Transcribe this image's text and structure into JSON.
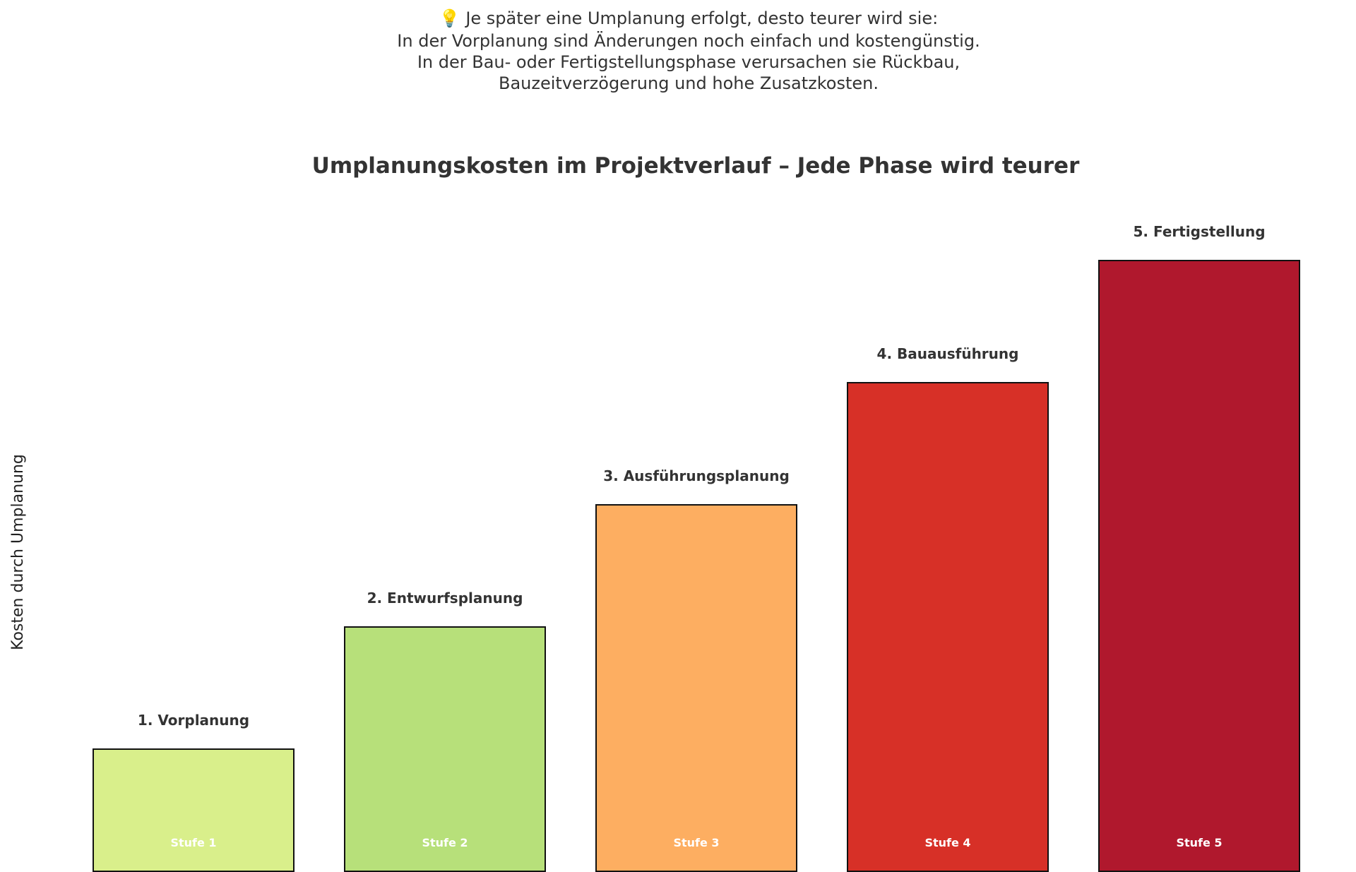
{
  "note": {
    "icon": "lightbulb-icon",
    "lines": [
      "💡 Je später eine Umplanung erfolgt, desto teurer wird sie:",
      "In der Vorplanung sind Änderungen noch einfach und kostengünstig.",
      "In der Bau- oder Fertigstellungsphase verursachen sie Rückbau,",
      "Bauzeitverzögerung und hohe Zusatzkosten."
    ]
  },
  "chart_data": {
    "type": "bar",
    "title": "Umplanungskosten im Projektverlauf – Jede Phase wird teurer",
    "xlabel": "",
    "ylabel": "Kosten durch Umplanung",
    "categories": [
      "1. Vorplanung",
      "2. Entwurfsplanung",
      "3. Ausführungsplanung",
      "4. Bauausführung",
      "5. Fertigstellung"
    ],
    "values": [
      1,
      2,
      3,
      4,
      5
    ],
    "stage_labels": [
      "Stufe 1",
      "Stufe 2",
      "Stufe 3",
      "Stufe 4",
      "Stufe 5"
    ],
    "colors": [
      "#d9ef8b",
      "#b7e07a",
      "#fdae61",
      "#d73027",
      "#b0182d"
    ],
    "ylim": [
      0,
      5.3
    ],
    "grid": false,
    "legend": "none"
  }
}
